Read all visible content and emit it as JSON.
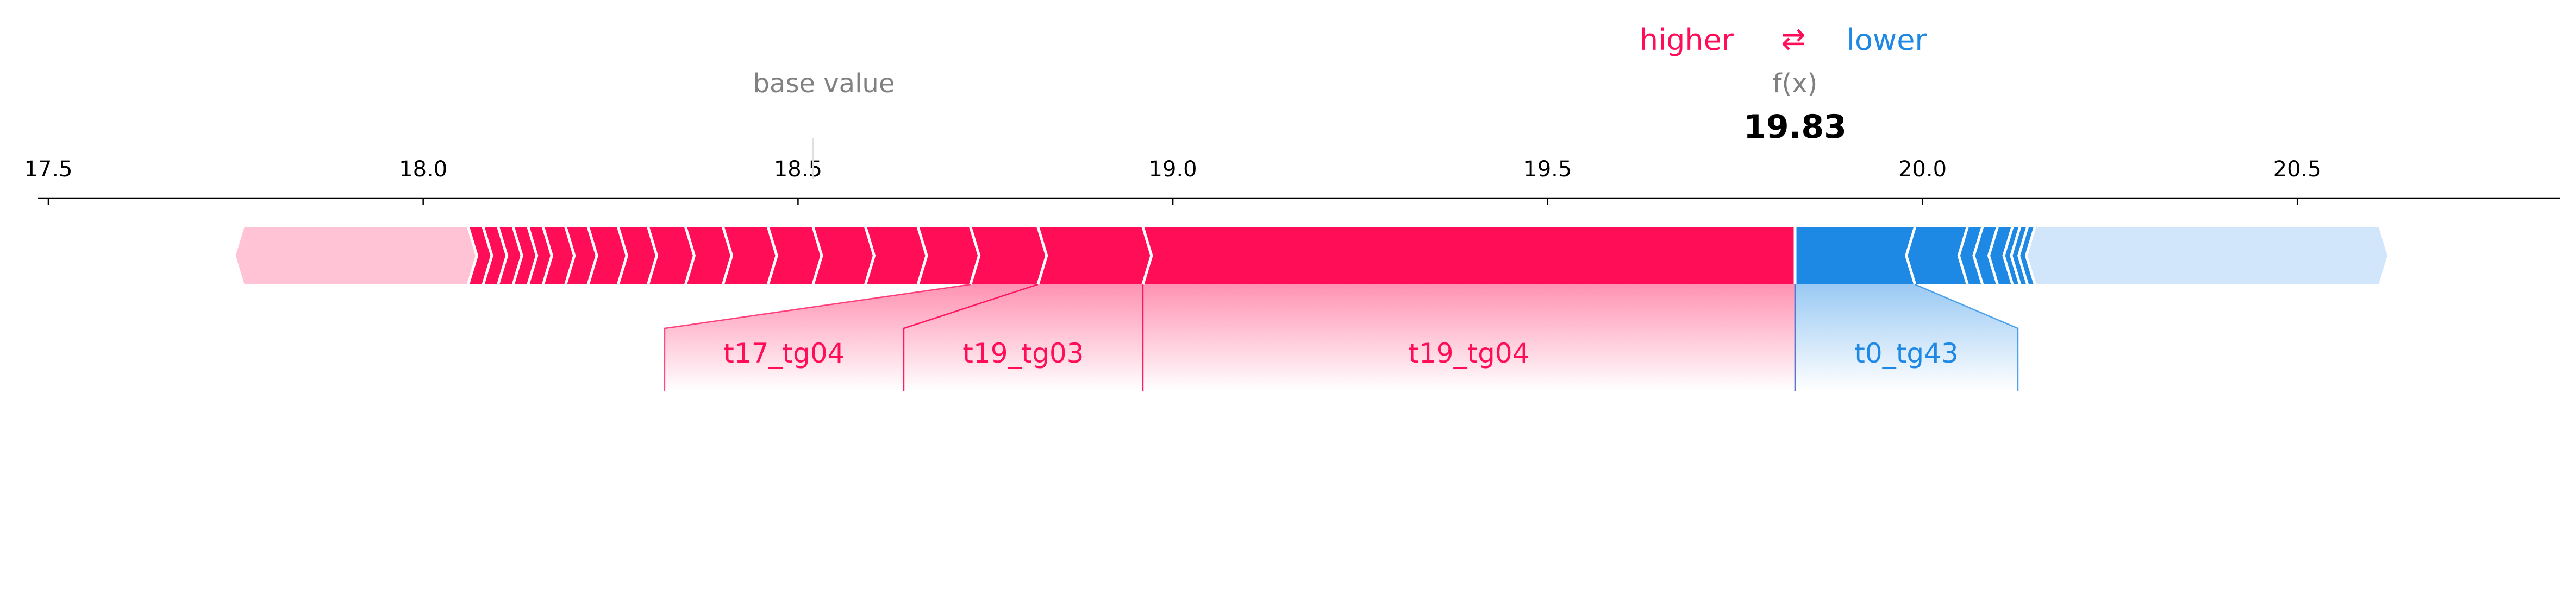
{
  "chart_data": {
    "type": "force",
    "legend": {
      "higher_label": "higher",
      "arrows": "⇄",
      "lower_label": "lower"
    },
    "base_value_label": "base value",
    "base_value": 18.52,
    "fx_label": "f(x)",
    "fx_value": 19.83,
    "fx_value_text": "19.83",
    "xlim": [
      17.45,
      20.85
    ],
    "ticks": [
      17.5,
      18.0,
      18.5,
      19.0,
      19.5,
      20.0,
      20.5
    ],
    "tick_labels": [
      "17.5",
      "18.0",
      "18.5",
      "19.0",
      "19.5",
      "20.0",
      "20.5"
    ],
    "range_low": 17.75,
    "range_high": 20.62,
    "positive_boundaries": [
      18.06,
      18.08,
      18.1,
      18.12,
      18.14,
      18.16,
      18.19,
      18.22,
      18.26,
      18.3,
      18.35,
      18.4,
      18.46,
      18.52,
      18.59,
      18.66,
      18.73,
      18.82,
      18.96
    ],
    "negative_boundaries": [
      20.15,
      20.14,
      20.13,
      20.12,
      20.1,
      20.08,
      20.06,
      19.99
    ],
    "features": [
      {
        "name": "t17_tg04",
        "side": "positive",
        "from": 18.73,
        "to": 18.82
      },
      {
        "name": "t19_tg03",
        "side": "positive",
        "from": 18.82,
        "to": 18.96
      },
      {
        "name": "t19_tg04",
        "side": "positive",
        "from": 18.96,
        "to": 19.83
      },
      {
        "name": "t0_tg43",
        "side": "negative",
        "from": 19.83,
        "to": 19.99
      }
    ],
    "colors": {
      "positive": "#ff0d57",
      "positive_light": "#ffc3d5",
      "negative": "#1e88e5",
      "negative_light": "#d1e6fa",
      "base_line": "#e0e0e0"
    }
  }
}
